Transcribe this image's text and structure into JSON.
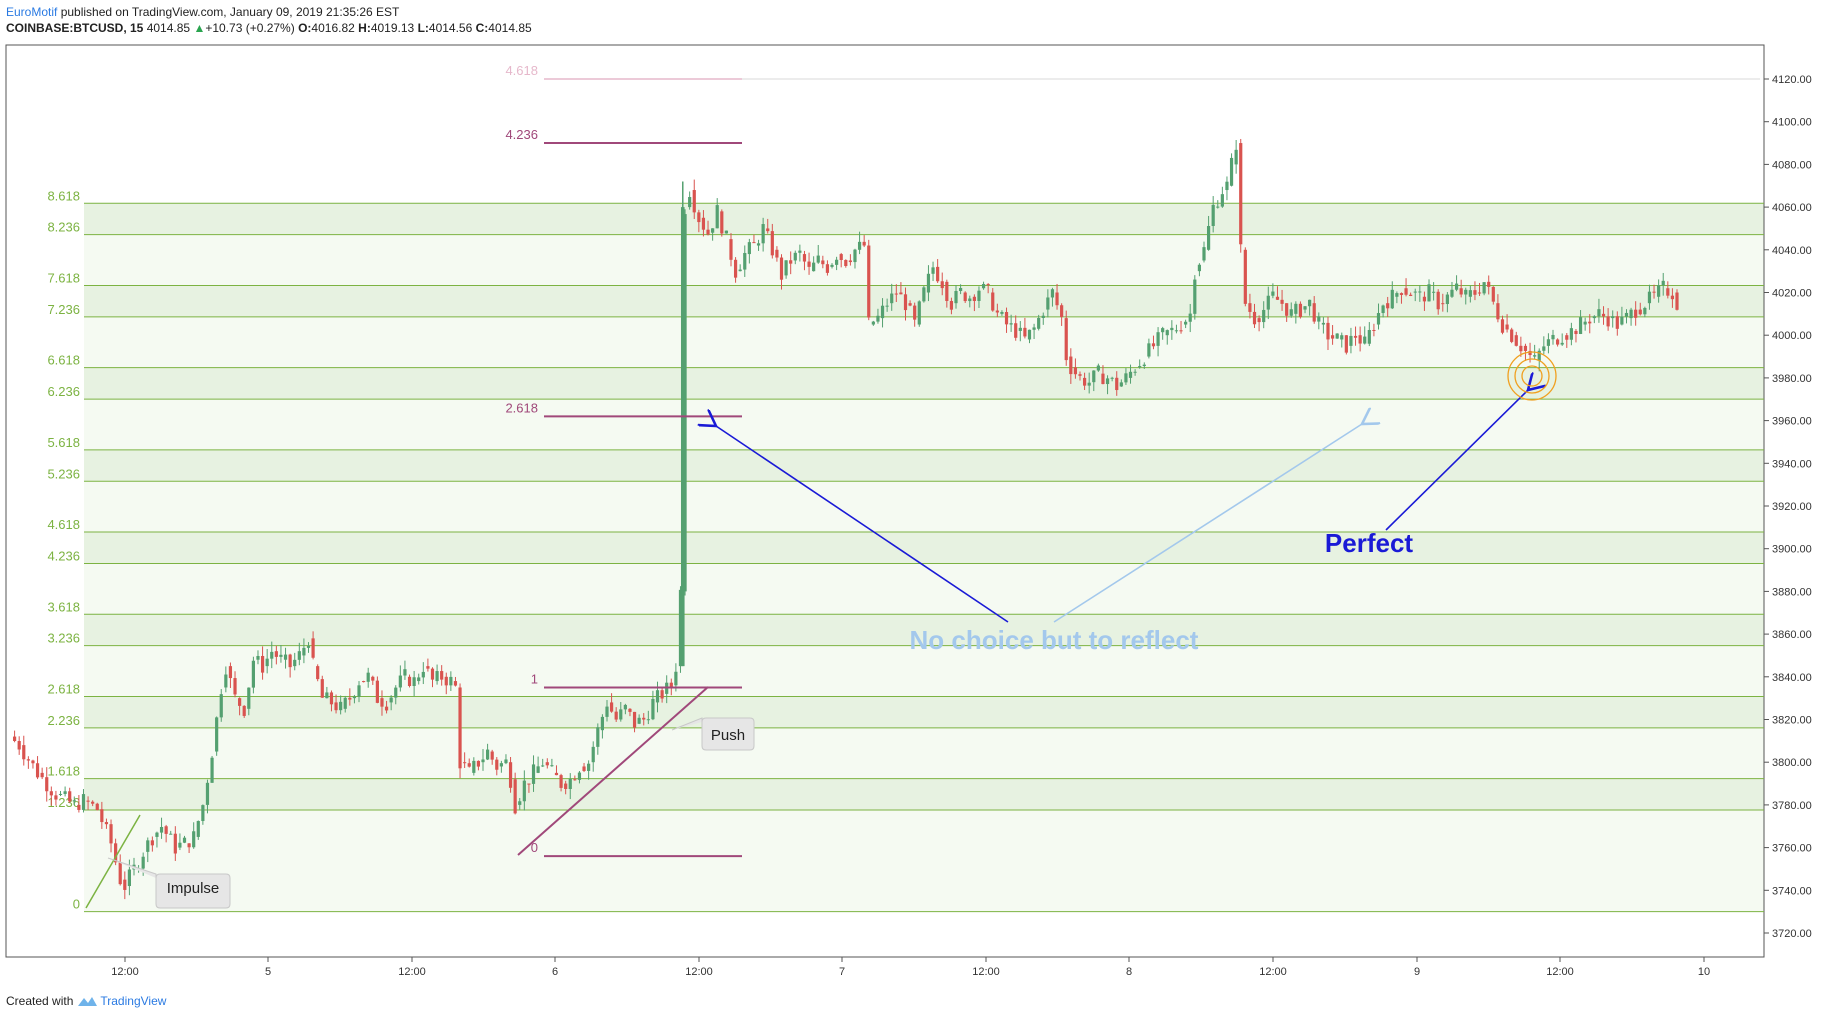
{
  "header": {
    "author": "EuroMotif",
    "published": "published on TradingView.com, January 09, 2019 21:35:26 EST",
    "symbol": "COINBASE:BTCUSD, 15",
    "last": "4014.85",
    "change_arrow": "▲",
    "change": "+10.73 (+0.27%)",
    "ohlc": {
      "o_label": "O:",
      "o": "4016.82",
      "h_label": "H:",
      "h": "4019.13",
      "l_label": "L:",
      "l": "4014.56",
      "c_label": "C:",
      "c": "4014.85"
    }
  },
  "footer": {
    "created_with": "Created with",
    "brand": "TradingView",
    "brand_icon": "tradingview-cloud-icon"
  },
  "colors": {
    "up": "#54a070",
    "down": "#d9534f",
    "fib_green": "#7cb342",
    "fib_purple": "#a0487a",
    "arrow_dark": "#1a1ad6",
    "arrow_light": "#a3c8ec",
    "circle": "#f0a020",
    "band": "#eef6ea"
  },
  "chart_data": {
    "type": "candlestick",
    "symbol": "COINBASE:BTCUSD",
    "interval": "15",
    "ylim": [
      3710,
      4130
    ],
    "y_ticks": [
      "4120.00",
      "4100.00",
      "4080.00",
      "4060.00",
      "4040.00",
      "4020.00",
      "4000.00",
      "3980.00",
      "3960.00",
      "3940.00",
      "3920.00",
      "3900.00",
      "3880.00",
      "3860.00",
      "3840.00",
      "3820.00",
      "3800.00",
      "3780.00",
      "3760.00",
      "3740.00",
      "3720.00"
    ],
    "x_ticks": [
      "12:00",
      "5",
      "12:00",
      "6",
      "12:00",
      "7",
      "12:00",
      "8",
      "12:00",
      "9",
      "12:00",
      "10"
    ],
    "fib_extension_green": {
      "base_price": 3730,
      "unit": 38.5,
      "levels": [
        "0",
        "1.236",
        "1.618",
        "2.236",
        "2.618",
        "3.236",
        "3.618",
        "4.236",
        "4.618",
        "5.236",
        "5.618",
        "6.236",
        "6.618",
        "7.236",
        "7.618",
        "8.236",
        "8.618"
      ]
    },
    "fib_extension_purple": {
      "levels": [
        {
          "label": "0",
          "price": 3756
        },
        {
          "label": "1",
          "price": 3835
        },
        {
          "label": "2.618",
          "price": 3962
        },
        {
          "label": "4.236",
          "price": 4090
        },
        {
          "label": "4.618",
          "price": 4120
        }
      ]
    },
    "price_path": [
      [
        3812,
        0
      ],
      [
        3808,
        2
      ],
      [
        3795,
        6
      ],
      [
        3785,
        10
      ],
      [
        3780,
        14
      ],
      [
        3782,
        16
      ],
      [
        3778,
        19
      ],
      [
        3762,
        22
      ],
      [
        3745,
        24
      ],
      [
        3742,
        25
      ],
      [
        3750,
        27
      ],
      [
        3758,
        29
      ],
      [
        3765,
        31
      ],
      [
        3770,
        33
      ],
      [
        3760,
        36
      ],
      [
        3762,
        38
      ],
      [
        3765,
        40
      ],
      [
        3780,
        42
      ],
      [
        3805,
        44
      ],
      [
        3835,
        46
      ],
      [
        3845,
        47
      ],
      [
        3830,
        49
      ],
      [
        3825,
        51
      ],
      [
        3848,
        53
      ],
      [
        3845,
        55
      ],
      [
        3852,
        57
      ],
      [
        3848,
        59
      ],
      [
        3845,
        61
      ],
      [
        3850,
        63
      ],
      [
        3858,
        65
      ],
      [
        3845,
        66
      ],
      [
        3830,
        68
      ],
      [
        3828,
        70
      ],
      [
        3825,
        72
      ],
      [
        3830,
        74
      ],
      [
        3838,
        76
      ],
      [
        3840,
        78
      ],
      [
        3830,
        80
      ],
      [
        3828,
        82
      ],
      [
        3835,
        84
      ],
      [
        3840,
        86
      ],
      [
        3838,
        88
      ],
      [
        3845,
        90
      ],
      [
        3838,
        92
      ],
      [
        3840,
        94
      ],
      [
        3838,
        96
      ],
      [
        3835,
        97
      ],
      [
        3800,
        98
      ],
      [
        3795,
        100
      ],
      [
        3800,
        102
      ],
      [
        3805,
        104
      ],
      [
        3798,
        106
      ],
      [
        3800,
        108
      ],
      [
        3792,
        109
      ],
      [
        3780,
        110
      ],
      [
        3790,
        112
      ],
      [
        3795,
        114
      ],
      [
        3800,
        116
      ],
      [
        3795,
        118
      ],
      [
        3790,
        120
      ],
      [
        3792,
        122
      ],
      [
        3798,
        124
      ],
      [
        3800,
        126
      ],
      [
        3815,
        128
      ],
      [
        3828,
        130
      ],
      [
        3820,
        132
      ],
      [
        3825,
        134
      ],
      [
        3818,
        136
      ],
      [
        3820,
        138
      ],
      [
        3828,
        140
      ],
      [
        3832,
        142
      ],
      [
        3836,
        144
      ],
      [
        3845,
        145
      ],
      [
        3880,
        146
      ],
      [
        4060,
        147
      ],
      [
        4068,
        148
      ],
      [
        4055,
        150
      ],
      [
        4048,
        152
      ],
      [
        4058,
        154
      ],
      [
        4045,
        156
      ],
      [
        4030,
        158
      ],
      [
        4038,
        160
      ],
      [
        4042,
        162
      ],
      [
        4050,
        164
      ],
      [
        4040,
        166
      ],
      [
        4028,
        168
      ],
      [
        4035,
        170
      ],
      [
        4038,
        172
      ],
      [
        4030,
        174
      ],
      [
        4035,
        176
      ],
      [
        4032,
        178
      ],
      [
        4038,
        180
      ],
      [
        4035,
        182
      ],
      [
        4040,
        184
      ],
      [
        4042,
        186
      ],
      [
        4005,
        187
      ],
      [
        4008,
        189
      ],
      [
        4015,
        191
      ],
      [
        4020,
        193
      ],
      [
        4015,
        195
      ],
      [
        4005,
        197
      ],
      [
        4020,
        199
      ],
      [
        4032,
        201
      ],
      [
        4025,
        203
      ],
      [
        4015,
        205
      ],
      [
        4020,
        207
      ],
      [
        4018,
        209
      ],
      [
        4022,
        211
      ],
      [
        4020,
        213
      ],
      [
        4010,
        215
      ],
      [
        4005,
        217
      ],
      [
        4002,
        219
      ],
      [
        3998,
        221
      ],
      [
        4003,
        223
      ],
      [
        4012,
        225
      ],
      [
        4020,
        227
      ],
      [
        4008,
        229
      ],
      [
        3990,
        230
      ],
      [
        3985,
        231
      ],
      [
        3980,
        233
      ],
      [
        3978,
        235
      ],
      [
        3982,
        237
      ],
      [
        3980,
        239
      ],
      [
        3976,
        241
      ],
      [
        3980,
        243
      ],
      [
        3985,
        245
      ],
      [
        3990,
        247
      ],
      [
        3995,
        249
      ],
      [
        4000,
        251
      ],
      [
        4002,
        253
      ],
      [
        4005,
        255
      ],
      [
        4010,
        257
      ],
      [
        4030,
        258
      ],
      [
        4035,
        259
      ],
      [
        4040,
        260
      ],
      [
        4060,
        262
      ],
      [
        4068,
        264
      ],
      [
        4070,
        265
      ],
      [
        4080,
        266
      ],
      [
        4090,
        267
      ],
      [
        4040,
        268
      ],
      [
        4015,
        269
      ],
      [
        4008,
        271
      ],
      [
        4012,
        273
      ],
      [
        4018,
        275
      ],
      [
        4015,
        277
      ],
      [
        4010,
        279
      ],
      [
        4012,
        281
      ],
      [
        4015,
        283
      ],
      [
        4005,
        285
      ],
      [
        4000,
        287
      ],
      [
        3998,
        289
      ],
      [
        3995,
        291
      ],
      [
        4000,
        293
      ],
      [
        3996,
        295
      ],
      [
        4005,
        297
      ],
      [
        4015,
        299
      ],
      [
        4018,
        301
      ],
      [
        4022,
        303
      ],
      [
        4020,
        305
      ],
      [
        4018,
        307
      ],
      [
        4020,
        309
      ],
      [
        4015,
        311
      ],
      [
        4018,
        313
      ],
      [
        4022,
        315
      ],
      [
        4018,
        317
      ],
      [
        4020,
        319
      ],
      [
        4025,
        321
      ],
      [
        4015,
        323
      ],
      [
        4005,
        325
      ],
      [
        4000,
        327
      ],
      [
        3995,
        329
      ],
      [
        3990,
        331
      ],
      [
        3988,
        332
      ],
      [
        3995,
        334
      ],
      [
        3998,
        336
      ],
      [
        4000,
        338
      ],
      [
        4002,
        340
      ],
      [
        4005,
        342
      ],
      [
        4008,
        344
      ],
      [
        4010,
        346
      ],
      [
        4008,
        348
      ],
      [
        4005,
        350
      ],
      [
        4008,
        352
      ],
      [
        4012,
        354
      ],
      [
        4015,
        356
      ],
      [
        4018,
        358
      ],
      [
        4022,
        360
      ],
      [
        4020,
        362
      ],
      [
        4015,
        363
      ]
    ],
    "annotations": [
      {
        "text": "Impulse",
        "type": "callout"
      },
      {
        "text": "Push",
        "type": "callout"
      },
      {
        "text": "No choice but to reflect",
        "type": "label",
        "color": "#a3c8ec"
      },
      {
        "text": "Perfect",
        "type": "label",
        "color": "#1a1ad6"
      }
    ]
  }
}
